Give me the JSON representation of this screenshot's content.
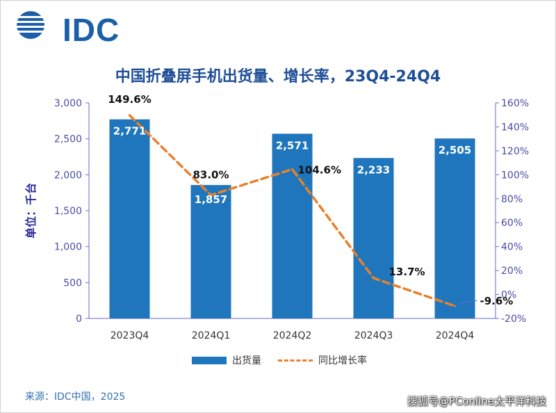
{
  "logo": {
    "text": "IDC"
  },
  "chart_data": {
    "type": "bar+line",
    "title": "中国折叠屏手机出货量、增长率，23Q4-24Q4",
    "ylabel": "单位：千台",
    "categories": [
      "2023Q4",
      "2024Q1",
      "2024Q2",
      "2024Q3",
      "2024Q4"
    ],
    "series": [
      {
        "name": "出货量",
        "type": "bar",
        "axis": "left",
        "values": [
          2771,
          1857,
          2571,
          2233,
          2505
        ],
        "labels": [
          "2,771",
          "1,857",
          "2,571",
          "2,233",
          "2,505"
        ],
        "color": "#1f76bd"
      },
      {
        "name": "同比增长率",
        "type": "line",
        "axis": "right",
        "values": [
          149.6,
          83.0,
          104.6,
          13.7,
          -9.6
        ],
        "labels": [
          "149.6%",
          "83.0%",
          "104.6%",
          "13.7%",
          "-9.6%"
        ],
        "color": "#e8812b"
      }
    ],
    "left_axis": {
      "min": 0,
      "max": 3000,
      "step": 500,
      "ticks": [
        "0",
        "500",
        "1,000",
        "1,500",
        "2,000",
        "2,500",
        "3,000"
      ]
    },
    "right_axis": {
      "min": -20,
      "max": 160,
      "step": 20,
      "ticks": [
        "-20%",
        "0%",
        "20%",
        "40%",
        "60%",
        "80%",
        "100%",
        "120%",
        "140%",
        "160%"
      ]
    },
    "axis_color": "#6a6ad0",
    "tick_color": "#4a4aa8"
  },
  "source": "来源：IDC中国，2025",
  "watermark": "搜狐号@PConline太平洋科技"
}
